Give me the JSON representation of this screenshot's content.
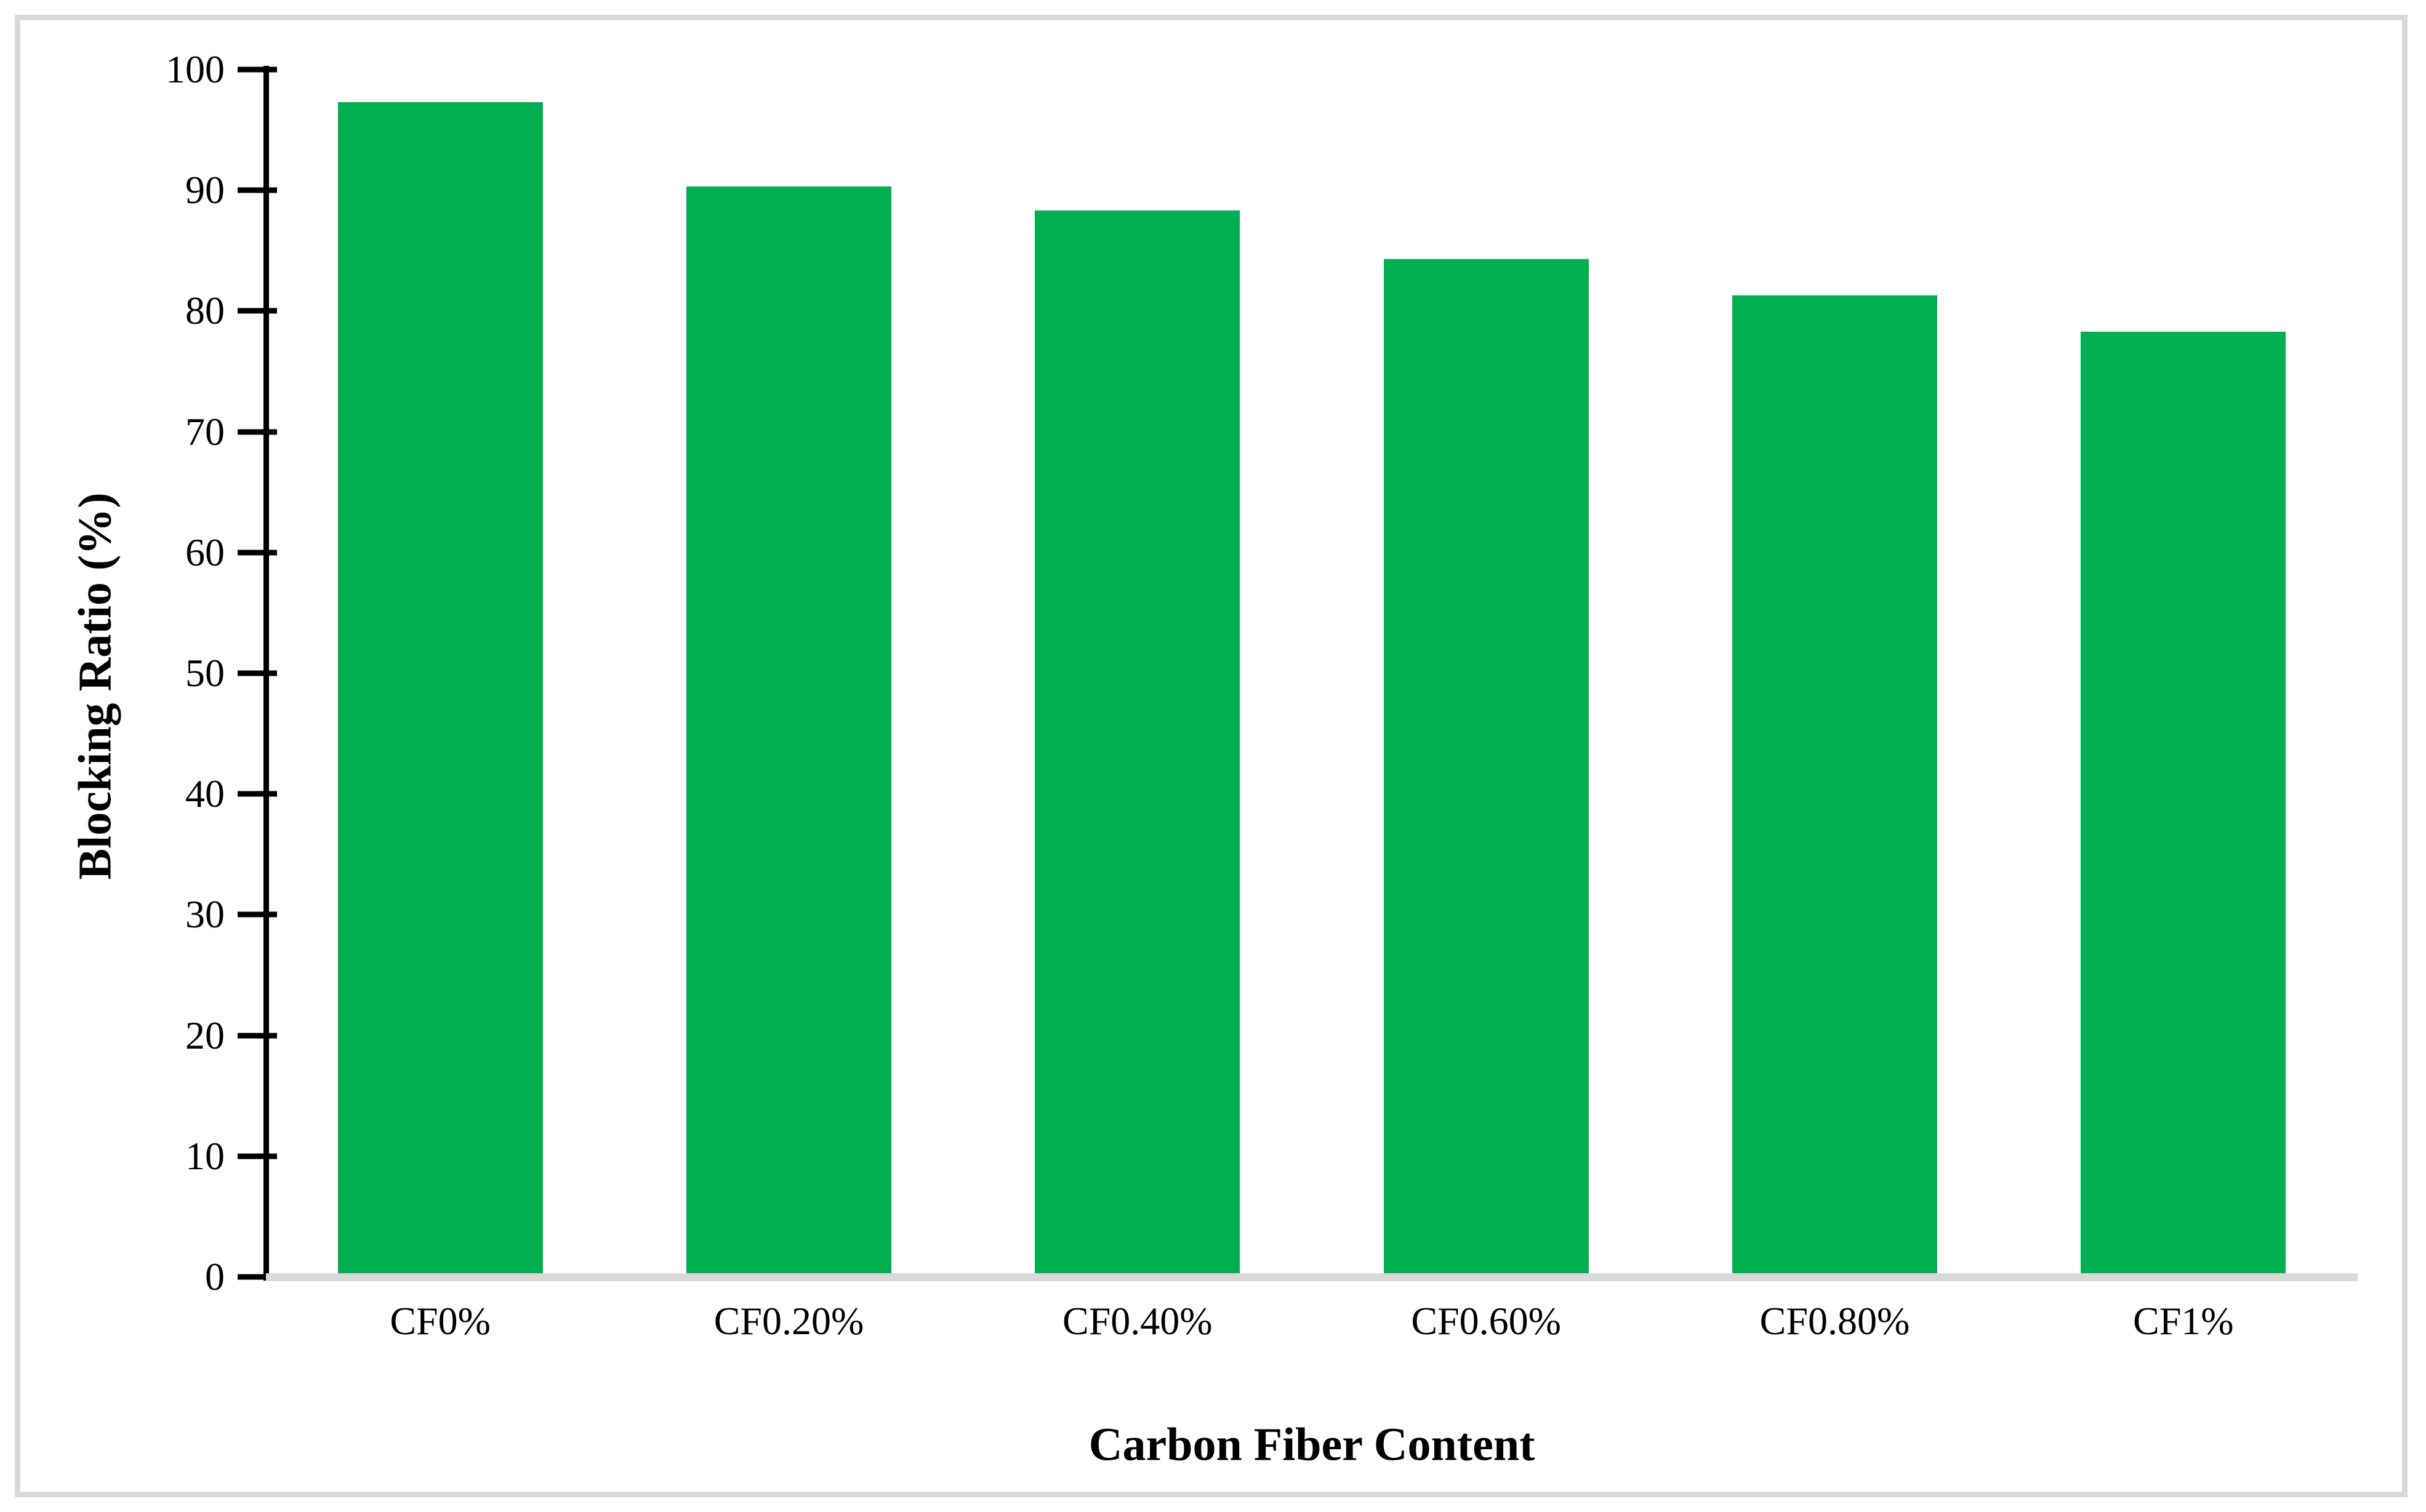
{
  "chart_data": {
    "type": "bar",
    "categories": [
      "CF0%",
      "CF0.20%",
      "CF0.40%",
      "CF0.60%",
      "CF0.80%",
      "CF1%"
    ],
    "values": [
      97,
      90,
      88,
      84,
      81,
      78
    ],
    "title": "",
    "xlabel": "Carbon Fiber Content",
    "ylabel": "Blocking Ratio (%)",
    "ylim": [
      0,
      100
    ],
    "yticks": [
      0,
      10,
      20,
      30,
      40,
      50,
      60,
      70,
      80,
      90,
      100
    ],
    "grid": false,
    "legend_position": "none",
    "bar_color": "#00B050",
    "axis_color": "#000000",
    "baseline_color": "#d9d9d9",
    "frame_color": "#d9d9d9",
    "background_color": "#ffffff"
  }
}
